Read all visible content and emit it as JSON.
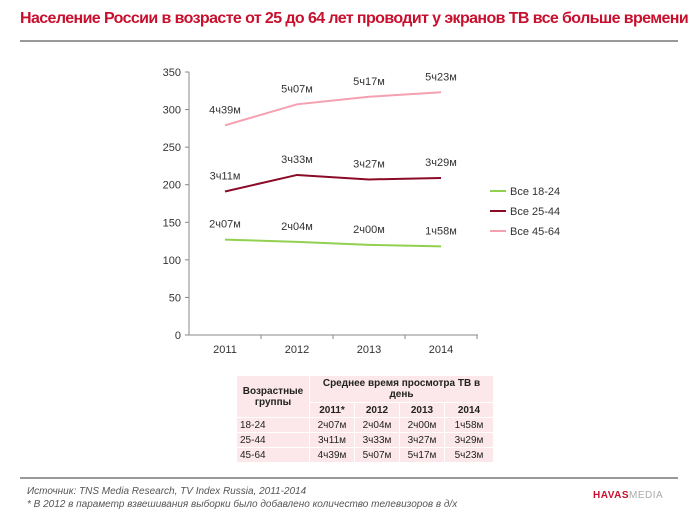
{
  "title": "Население России в возрасте от 25 до 64 лет проводит у экранов ТВ все больше времени",
  "chart_data": {
    "type": "line",
    "title": "Население России в возрасте от 25 до 64 лет проводит у экранов ТВ все больше времени",
    "x": [
      "2011",
      "2012",
      "2013",
      "2014"
    ],
    "ylim": [
      0,
      350
    ],
    "yticks": [
      "0",
      "50",
      "100",
      "150",
      "200",
      "250",
      "300",
      "350"
    ],
    "legend_position": "right",
    "series": [
      {
        "name": "Все 18-24",
        "color": "#92d050",
        "values": [
          127,
          124,
          120,
          118
        ],
        "labels": [
          "2ч07м",
          "2ч04м",
          "2ч00м",
          "1ч58м"
        ]
      },
      {
        "name": "Все 25-44",
        "color": "#8b0a26",
        "values": [
          191,
          213,
          207,
          209
        ],
        "labels": [
          "3ч11м",
          "3ч33м",
          "3ч27м",
          "3ч29м"
        ]
      },
      {
        "name": "Все 45-64",
        "color": "#f4a0b0",
        "values": [
          279,
          307,
          317,
          323
        ],
        "labels": [
          "4ч39м",
          "5ч07м",
          "5ч17м",
          "5ч23м"
        ]
      }
    ]
  },
  "table": {
    "col1_header": "Возрастные группы",
    "group_header": "Среднее время просмотра ТВ в день",
    "years": [
      "2011*",
      "2012",
      "2013",
      "2014"
    ],
    "rows": [
      {
        "group": "18-24",
        "values": [
          "2ч07м",
          "2ч04м",
          "2ч00м",
          "1ч58м"
        ]
      },
      {
        "group": "25-44",
        "values": [
          "3ч11м",
          "3ч33м",
          "3ч27м",
          "3ч29м"
        ]
      },
      {
        "group": "45-64",
        "values": [
          "4ч39м",
          "5ч07м",
          "5ч17м",
          "5ч23м"
        ]
      }
    ]
  },
  "footer": {
    "source": "Источник: TNS Media Research, TV Index Russia, 2011-2014",
    "note": "* В 2012 в параметр взвешивания выборки было добавлено количество телевизоров в д/х",
    "logo_a": "HAVAS",
    "logo_b": "MEDIA"
  }
}
